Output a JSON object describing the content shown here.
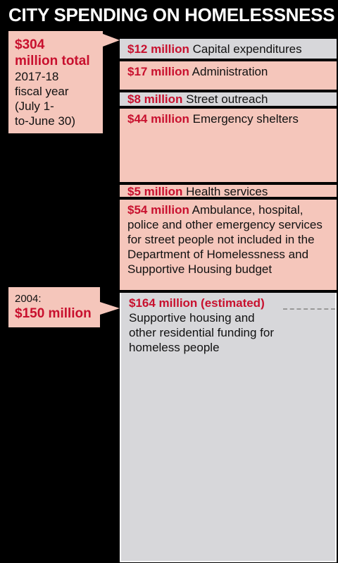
{
  "title": "CITY SPENDING ON HOMELESSNESS",
  "total_callout": {
    "amount": "$304",
    "amount_line2": "million total",
    "line1": "2017-18",
    "line2": "fiscal year",
    "line3": "(July 1-",
    "line4": "to-June 30)"
  },
  "year2004_callout": {
    "year": "2004:",
    "amount": "$150 million",
    "value_millions": 150
  },
  "colors": {
    "pink": "#f5c6bb",
    "gray": "#d7d7da",
    "accent_red": "#c8102e",
    "background": "#000000"
  },
  "chart_data": {
    "type": "bar",
    "subtype": "stacked single column",
    "title": "CITY SPENDING ON HOMELESSNESS",
    "units": "million dollars",
    "total": 304,
    "reference_marker": {
      "year": "2004",
      "value": 150
    },
    "segments": [
      {
        "amount": "$12 million",
        "value": 12,
        "label": "Capital expenditures",
        "color": "gray"
      },
      {
        "amount": "$17 million",
        "value": 17,
        "label": "Administration",
        "color": "pink"
      },
      {
        "amount": "$8 million",
        "value": 8,
        "label": "Street outreach",
        "color": "gray"
      },
      {
        "amount": "$44 million",
        "value": 44,
        "label": "Emergency shelters",
        "color": "pink"
      },
      {
        "amount": "$5 million",
        "value": 5,
        "label": "Health services",
        "color": "pink"
      },
      {
        "amount": "$54 million",
        "value": 54,
        "label": "Ambulance, hospital, police and other emergency services for street people not included in the Department of Homelessness and Supportive Housing budget",
        "color": "pink"
      },
      {
        "amount": "$164 million (estimated)",
        "value": 164,
        "label": "Supportive housing and other residential funding for homeless people",
        "color": "gray"
      }
    ]
  }
}
